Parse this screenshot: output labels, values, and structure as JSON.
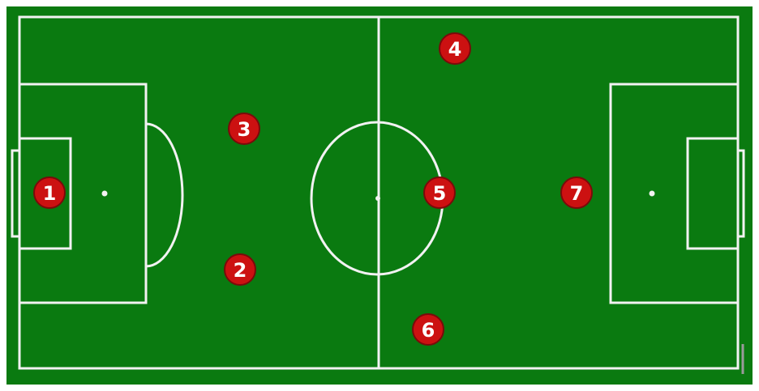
{
  "colors": {
    "pitch": "#0a7a10",
    "lines": "#f2f2f2",
    "player_fill": "#cc1111",
    "player_stroke": "#7a0a0a",
    "player_text": "#ffffff"
  },
  "players": [
    {
      "number": "1"
    },
    {
      "number": "2"
    },
    {
      "number": "3"
    },
    {
      "number": "4"
    },
    {
      "number": "5"
    },
    {
      "number": "6"
    },
    {
      "number": "7"
    }
  ]
}
